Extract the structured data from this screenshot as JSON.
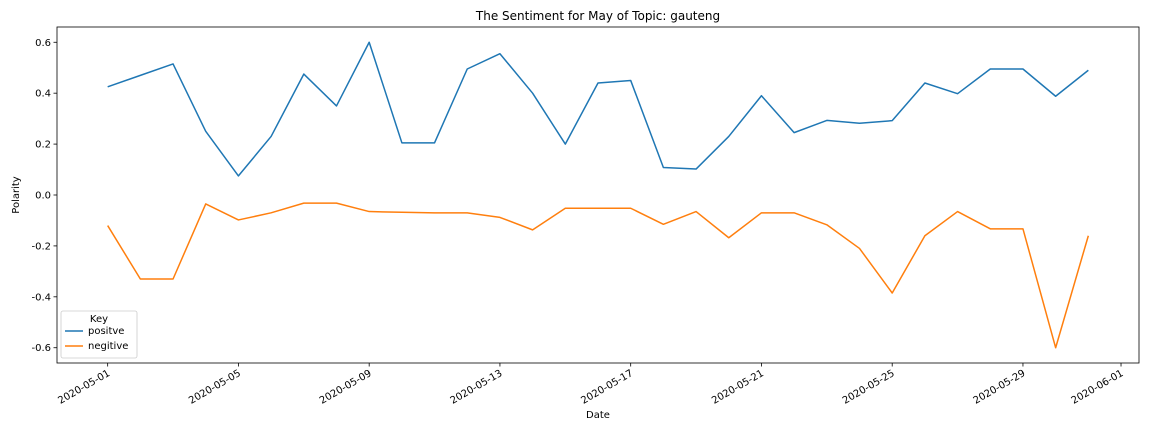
{
  "chart_data": {
    "type": "line",
    "title": "The Sentiment for May of Topic: gauteng",
    "xlabel": "Date",
    "ylabel": "Polarity",
    "x": [
      "2020-05-01",
      "2020-05-02",
      "2020-05-03",
      "2020-05-04",
      "2020-05-05",
      "2020-05-06",
      "2020-05-07",
      "2020-05-08",
      "2020-05-09",
      "2020-05-10",
      "2020-05-11",
      "2020-05-12",
      "2020-05-13",
      "2020-05-14",
      "2020-05-15",
      "2020-05-16",
      "2020-05-17",
      "2020-05-18",
      "2020-05-19",
      "2020-05-20",
      "2020-05-21",
      "2020-05-22",
      "2020-05-23",
      "2020-05-24",
      "2020-05-25",
      "2020-05-26",
      "2020-05-27",
      "2020-05-28",
      "2020-05-29",
      "2020-05-30",
      "2020-05-31"
    ],
    "series": [
      {
        "name": "positve",
        "color": "#1f77b4",
        "values": [
          0.425,
          0.47,
          0.515,
          0.25,
          0.075,
          0.23,
          0.475,
          0.35,
          0.6,
          0.205,
          0.205,
          0.495,
          0.555,
          0.4,
          0.2,
          0.44,
          0.45,
          0.108,
          0.102,
          0.23,
          0.39,
          0.245,
          0.293,
          0.282,
          0.292,
          0.44,
          0.398,
          0.495,
          0.495,
          0.388,
          0.49
        ]
      },
      {
        "name": "negitive",
        "color": "#ff7f0e",
        "values": [
          -0.12,
          -0.33,
          -0.33,
          -0.035,
          -0.098,
          -0.07,
          -0.032,
          -0.032,
          -0.065,
          -0.068,
          -0.07,
          -0.07,
          -0.088,
          -0.137,
          -0.052,
          -0.052,
          -0.052,
          -0.115,
          -0.065,
          -0.168,
          -0.07,
          -0.07,
          -0.117,
          -0.21,
          -0.385,
          -0.16,
          -0.065,
          -0.133,
          -0.133,
          -0.6,
          -0.16
        ]
      }
    ],
    "xticks": [
      "2020-05-01",
      "2020-05-05",
      "2020-05-09",
      "2020-05-13",
      "2020-05-17",
      "2020-05-21",
      "2020-05-25",
      "2020-05-29",
      "2020-06-01"
    ],
    "ylim": [
      -0.66,
      0.66
    ],
    "yticks": [
      -0.6,
      -0.4,
      -0.2,
      0.0,
      0.2,
      0.4,
      0.6
    ],
    "legend": {
      "title": "Key",
      "position": "lower-left"
    },
    "grid": false
  }
}
